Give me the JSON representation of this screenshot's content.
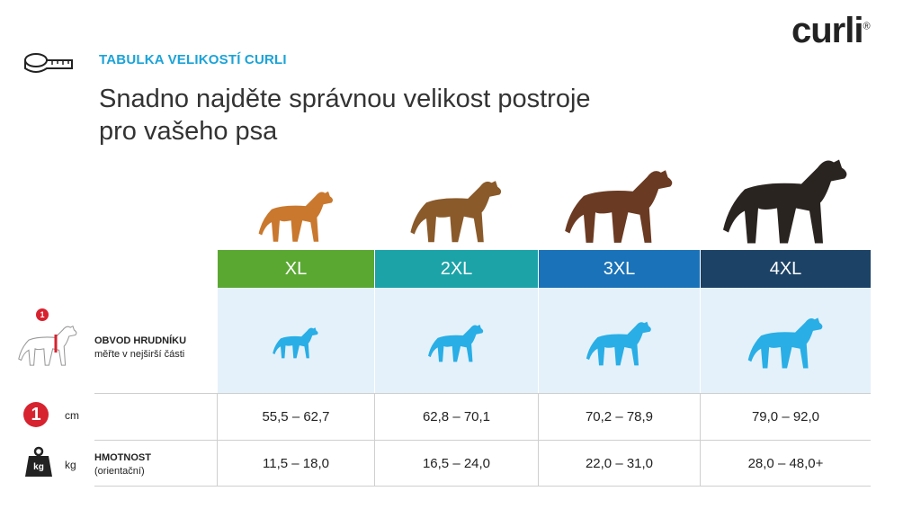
{
  "header": {
    "kicker": "TABULKA VELIKOSTÍ CURLI",
    "title_lines": [
      "Snadno najděte správnou velikost postroje",
      "pro vašeho psa"
    ]
  },
  "logo": {
    "text": "curli",
    "mark": "®"
  },
  "rows": {
    "chest": {
      "label": "OBVOD HRUDNÍKU",
      "note": "měřte v nejširší části",
      "badge": "1"
    },
    "cm": {
      "badge": "1",
      "unit": "cm"
    },
    "weight": {
      "label": "HMOTNOST",
      "note": "(orientační)",
      "badge": "kg",
      "unit": "kg"
    }
  },
  "sizes": [
    {
      "label": "XL",
      "color": "#5aa832",
      "chest": "55,5 – 62,7",
      "weight": "11,5 – 18,0"
    },
    {
      "label": "2XL",
      "color": "#1ba3a8",
      "chest": "62,8 – 70,1",
      "weight": "16,5 – 24,0"
    },
    {
      "label": "3XL",
      "color": "#1a72b8",
      "chest": "70,2 – 78,9",
      "weight": "22,0 – 31,0"
    },
    {
      "label": "4XL",
      "color": "#1c4266",
      "chest": "79,0 – 92,0",
      "weight": "28,0 – 48,0+"
    }
  ]
}
